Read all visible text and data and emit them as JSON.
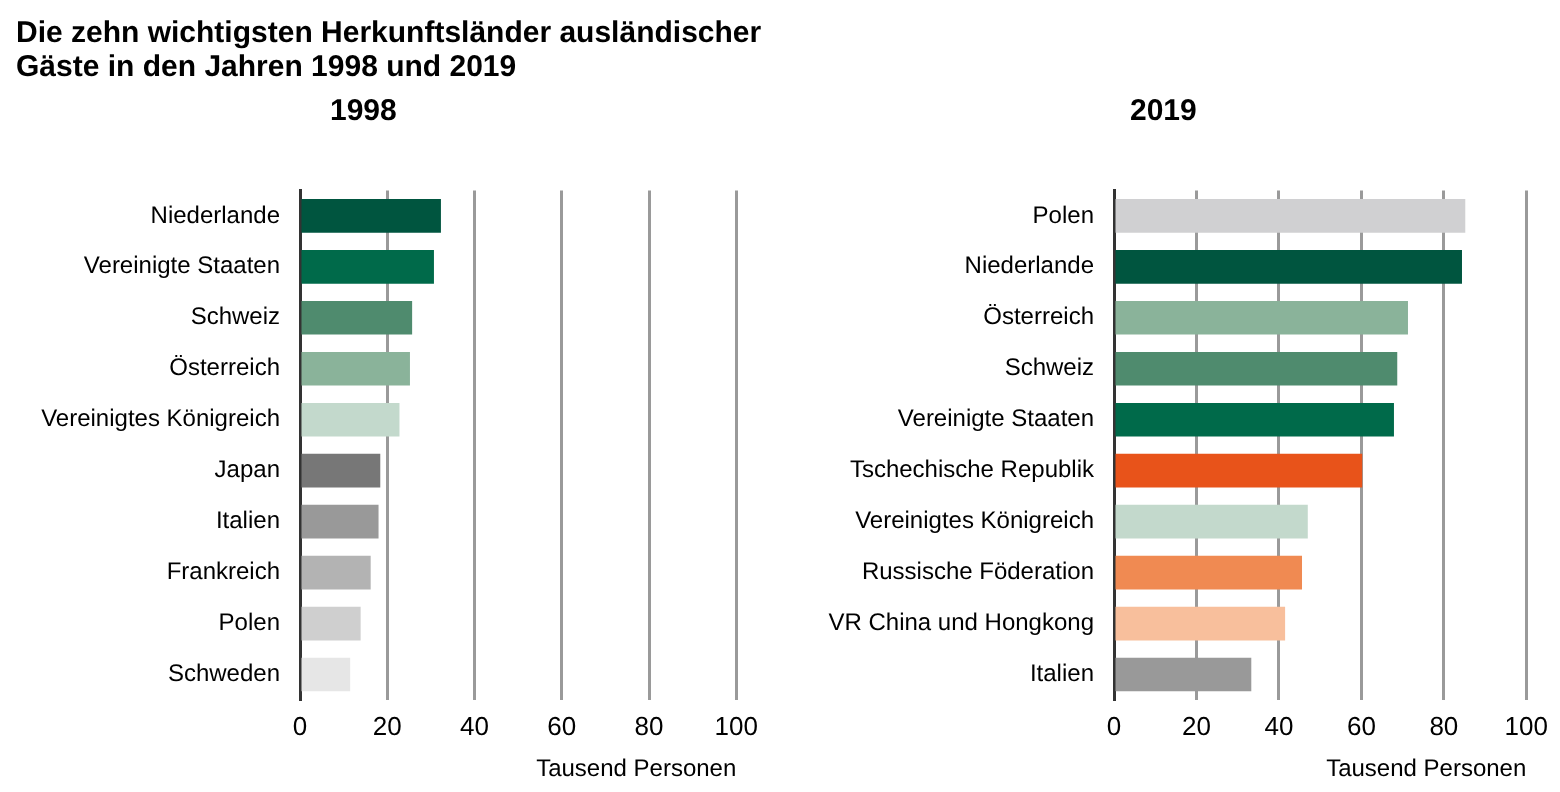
{
  "chart_data": [
    {
      "type": "bar",
      "title": "Die zehn wichtigsten Herkunftsländer ausländischer Gäste in den Jahren 1998 und 2019",
      "subtitle": "1998",
      "orientation": "horizontal",
      "xlabel": "Tausend Personen",
      "categories": [
        "Niederlande",
        "Vereinigte Staaten",
        "Schweiz",
        "Österreich",
        "Vereinigtes Königreich",
        "Japan",
        "Italien",
        "Frankreich",
        "Polen",
        "Schweden"
      ],
      "values": [
        32.3,
        30.7,
        25.7,
        25.2,
        22.8,
        18.4,
        18.0,
        16.2,
        13.9,
        11.5
      ],
      "colors": [
        "#00553f",
        "#006a4a",
        "#4f8b6e",
        "#8ab39a",
        "#c3d9cc",
        "#777777",
        "#999999",
        "#b3b3b3",
        "#cfcfcf",
        "#e6e6e6"
      ],
      "xlim": [
        0,
        100
      ],
      "xticks": [
        0,
        20,
        40,
        60,
        80,
        100
      ],
      "grid": "x",
      "legend": false
    },
    {
      "type": "bar",
      "title": "2019",
      "orientation": "horizontal",
      "xlabel": "Tausend Personen",
      "categories": [
        "Polen",
        "Niederlande",
        "Österreich",
        "Schweiz",
        "Vereinigte Staaten",
        "Tschechische Republik",
        "Vereinigtes Königreich",
        "Russische Föderation",
        "VR China und Hongkong",
        "Italien"
      ],
      "values": [
        85.2,
        84.4,
        71.3,
        68.7,
        67.9,
        60.2,
        47.0,
        45.6,
        41.5,
        33.3
      ],
      "colors": [
        "#d0d0d2",
        "#00553f",
        "#8ab39a",
        "#4f8b6e",
        "#006a4a",
        "#e8531a",
        "#c3d9cc",
        "#f08a52",
        "#f8bf9c",
        "#999999"
      ],
      "xlim": [
        0,
        100
      ],
      "xticks": [
        0,
        20,
        40,
        60,
        80,
        100
      ],
      "grid": "x",
      "legend": false
    }
  ]
}
